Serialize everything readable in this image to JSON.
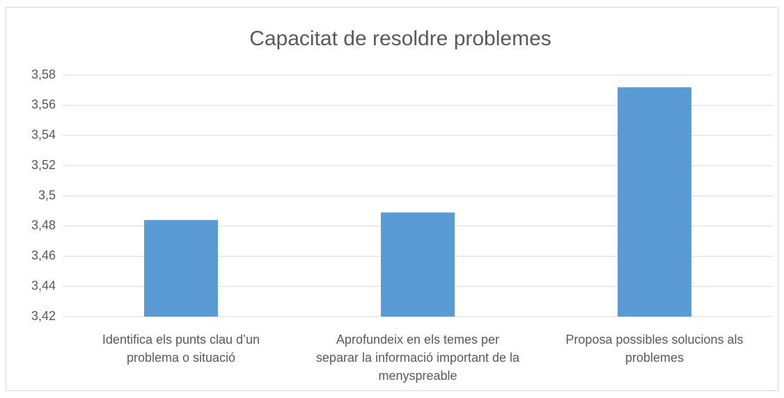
{
  "chart_data": {
    "type": "bar",
    "title": "Capacitat de resoldre problemes",
    "categories": [
      "Identifica els punts clau d’un problema o situació",
      "Aprofundeix en els temes per separar la informació important de la menyspreable",
      "Proposa possibles solucions als problemes"
    ],
    "values": [
      3.484,
      3.489,
      3.572
    ],
    "color": "#5b9bd5",
    "ylim": [
      3.42,
      3.58
    ],
    "yticks": [
      {
        "value": 3.42,
        "label": "3,42"
      },
      {
        "value": 3.44,
        "label": "3,44"
      },
      {
        "value": 3.46,
        "label": "3,46"
      },
      {
        "value": 3.48,
        "label": "3,48"
      },
      {
        "value": 3.5,
        "label": "3,5"
      },
      {
        "value": 3.52,
        "label": "3,52"
      },
      {
        "value": 3.54,
        "label": "3,54"
      },
      {
        "value": 3.56,
        "label": "3,56"
      },
      {
        "value": 3.58,
        "label": "3,58"
      }
    ],
    "grid": true
  }
}
